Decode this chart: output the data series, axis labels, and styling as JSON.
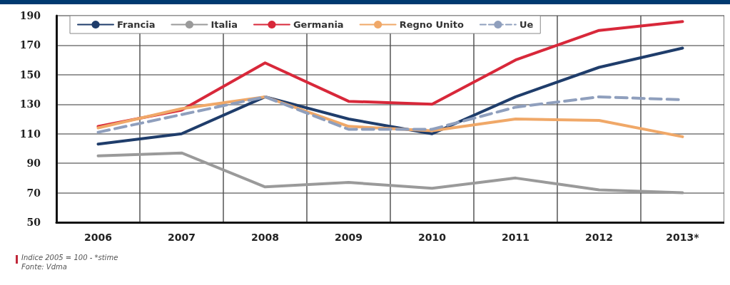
{
  "chart_data": {
    "type": "line",
    "categories": [
      "2006",
      "2007",
      "2008",
      "2009",
      "2010",
      "2011",
      "2012",
      "2013*"
    ],
    "series": [
      {
        "name": "Francia",
        "color": "#1f3d6b",
        "values": [
          103,
          110,
          135,
          120,
          110,
          135,
          155,
          168
        ]
      },
      {
        "name": "Italia",
        "color": "#9a9a9a",
        "values": [
          95,
          97,
          74,
          77,
          73,
          80,
          72,
          70
        ]
      },
      {
        "name": "Germania",
        "color": "#d8283a",
        "values": [
          115,
          126,
          158,
          132,
          130,
          160,
          180,
          186
        ]
      },
      {
        "name": "Regno Unito",
        "color": "#f0a868",
        "values": [
          114,
          127,
          135,
          115,
          112,
          120,
          119,
          108
        ]
      },
      {
        "name": "Ue",
        "color": "#8f9fbd",
        "line_style": "dashed",
        "values": [
          111,
          123,
          135,
          113,
          113,
          128,
          135,
          133
        ]
      }
    ],
    "ylim": [
      50,
      190
    ],
    "yticks": [
      50,
      70,
      90,
      110,
      130,
      150,
      170,
      190
    ],
    "grid": true,
    "legend": "top left",
    "marker": "none",
    "line_style": "solid",
    "annotations": [
      "Indice 2005 = 100 - *stime",
      "Fonte: Vdma"
    ]
  }
}
